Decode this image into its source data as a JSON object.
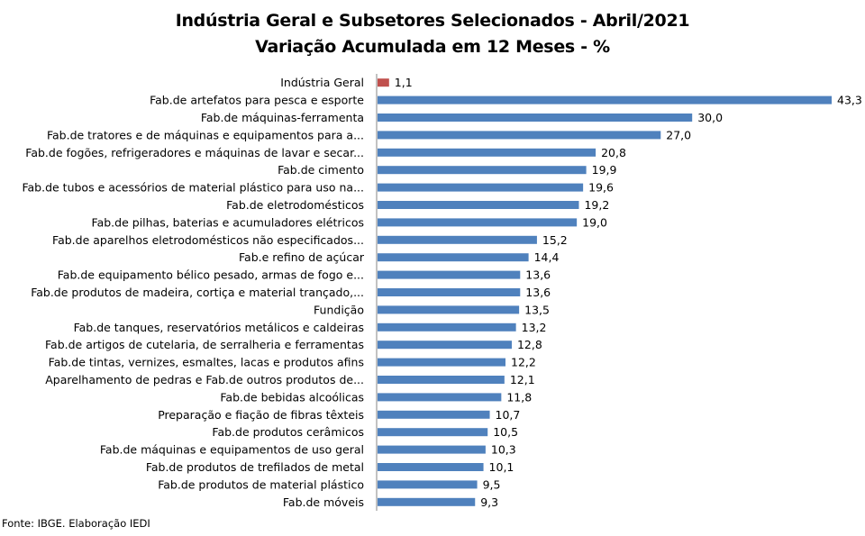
{
  "chart_data": {
    "type": "bar",
    "orientation": "horizontal",
    "title": "Indústria Geral e Subsetores Selecionados - Abril/2021",
    "subtitle": "Variação Acumulada em 12 Meses - %",
    "categories": [
      "Indústria Geral",
      "Fab.de artefatos para pesca e esporte",
      "Fab.de máquinas-ferramenta",
      "Fab.de tratores e de máquinas e equipamentos para a...",
      "Fab.de fogões, refrigeradores e máquinas de lavar e secar...",
      "Fab.de cimento",
      "Fab.de tubos e acessórios de material plástico para uso na...",
      "Fab.de eletrodomésticos",
      "Fab.de pilhas, baterias e acumuladores elétricos",
      "Fab.de aparelhos eletrodomésticos não especificados...",
      "Fab.e refino de açúcar",
      "Fab.de equipamento bélico pesado, armas de fogo e...",
      "Fab.de produtos de madeira, cortiça e material trançado,...",
      "Fundição",
      "Fab.de tanques, reservatórios metálicos e caldeiras",
      "Fab.de artigos de cutelaria, de serralheria e ferramentas",
      "Fab.de tintas, vernizes, esmaltes, lacas e produtos afins",
      "Aparelhamento de pedras e Fab.de outros produtos de...",
      "Fab.de bebidas alcoólicas",
      "Preparação e fiação de fibras têxteis",
      "Fab.de produtos cerâmicos",
      "Fab.de máquinas e equipamentos de uso geral",
      "Fab.de produtos de trefilados de metal",
      "Fab.de produtos de material plástico",
      "Fab.de móveis"
    ],
    "values": [
      1.1,
      43.3,
      30.0,
      27.0,
      20.8,
      19.9,
      19.6,
      19.2,
      19.0,
      15.2,
      14.4,
      13.6,
      13.6,
      13.5,
      13.2,
      12.8,
      12.2,
      12.1,
      11.8,
      10.7,
      10.5,
      10.3,
      10.1,
      9.5,
      9.3
    ],
    "value_labels": [
      "1,1",
      "43,3",
      "30,0",
      "27,0",
      "20,8",
      "19,9",
      "19,6",
      "19,2",
      "19,0",
      "15,2",
      "14,4",
      "13,6",
      "13,6",
      "13,5",
      "13,2",
      "12,8",
      "12,2",
      "12,1",
      "11,8",
      "10,7",
      "10,5",
      "10,3",
      "10,1",
      "9,5",
      "9,3"
    ],
    "highlight_index": 0,
    "colors": {
      "highlight": "#c0504d",
      "bar": "#4f81bd",
      "axis": "#868686"
    },
    "xlim": [
      0,
      45
    ],
    "grid": false,
    "legend": "none"
  },
  "source": "Fonte: IBGE. Elaboração IEDI"
}
